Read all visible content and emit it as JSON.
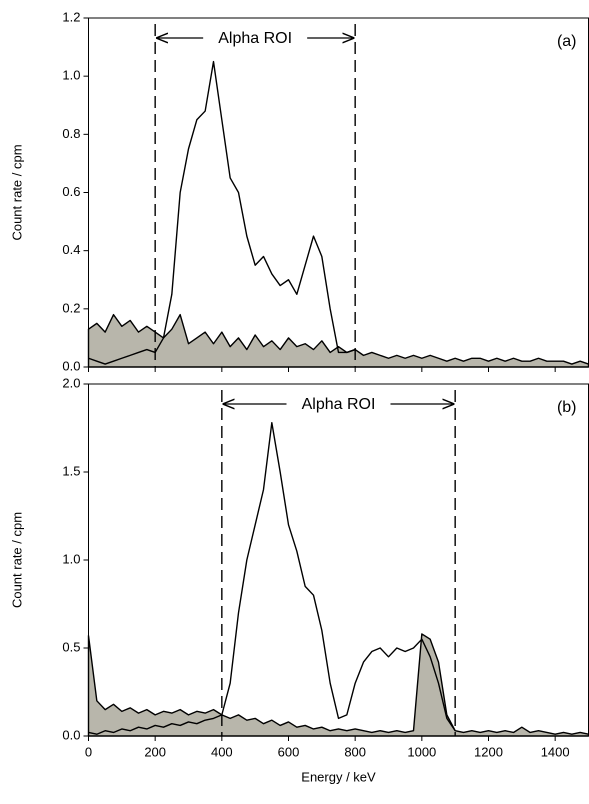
{
  "chart_data": [
    {
      "type": "line",
      "panel_label": "(a)",
      "ylabel": "Count rate / cpm",
      "annotation": "Alpha ROI",
      "roi": [
        200,
        800
      ],
      "xlim": [
        0,
        1500
      ],
      "xticks": [
        0,
        200,
        400,
        600,
        800,
        1000,
        1200,
        1400
      ],
      "ylim": [
        0,
        1.2
      ],
      "yticks": [
        {
          "value": 0,
          "label": "0.0"
        },
        0.2,
        0.4,
        0.6,
        0.8,
        {
          "value": 1,
          "label": "1.0"
        },
        1.2
      ],
      "x": [
        0,
        25,
        50,
        75,
        100,
        125,
        150,
        175,
        200,
        225,
        250,
        275,
        300,
        325,
        350,
        375,
        400,
        425,
        450,
        475,
        500,
        525,
        550,
        575,
        600,
        625,
        650,
        675,
        700,
        725,
        750,
        775,
        800,
        825,
        850,
        875,
        900,
        925,
        950,
        975,
        1000,
        1025,
        1050,
        1075,
        1100,
        1125,
        1150,
        1175,
        1200,
        1225,
        1250,
        1275,
        1300,
        1325,
        1350,
        1375,
        1400,
        1425,
        1450,
        1475,
        1500
      ],
      "series": [
        {
          "color": "#000000",
          "fill": "#b8b6ab",
          "values": [
            0.13,
            0.15,
            0.12,
            0.18,
            0.14,
            0.16,
            0.12,
            0.14,
            0.12,
            0.1,
            0.13,
            0.18,
            0.08,
            0.1,
            0.12,
            0.08,
            0.12,
            0.07,
            0.1,
            0.06,
            0.11,
            0.07,
            0.09,
            0.06,
            0.1,
            0.07,
            0.08,
            0.06,
            0.09,
            0.05,
            0.07,
            0.05,
            0.06,
            0.04,
            0.05,
            0.04,
            0.03,
            0.04,
            0.03,
            0.04,
            0.03,
            0.04,
            0.03,
            0.02,
            0.03,
            0.02,
            0.03,
            0.03,
            0.02,
            0.03,
            0.02,
            0.03,
            0.02,
            0.02,
            0.03,
            0.02,
            0.02,
            0.02,
            0.01,
            0.02,
            0.01
          ]
        },
        {
          "color": "#000000",
          "values": [
            0.03,
            0.02,
            0.01,
            0.02,
            0.03,
            0.04,
            0.05,
            0.06,
            0.05,
            0.1,
            0.25,
            0.6,
            0.75,
            0.85,
            0.88,
            1.05,
            0.85,
            0.65,
            0.6,
            0.45,
            0.35,
            0.38,
            0.32,
            0.28,
            0.3,
            0.25,
            0.35,
            0.45,
            0.38,
            0.2,
            0.05,
            0.05,
            0.06,
            null,
            null,
            null,
            null,
            null,
            null,
            null,
            null,
            null,
            null,
            null,
            null,
            null,
            null,
            null,
            null,
            null,
            null,
            null,
            null,
            null,
            null,
            null,
            null,
            null,
            null,
            null,
            null
          ]
        }
      ]
    },
    {
      "type": "line",
      "panel_label": "(b)",
      "ylabel": "Count rate / cpm",
      "xlabel": "Energy / keV",
      "annotation": "Alpha ROI",
      "roi": [
        400,
        1100
      ],
      "xlim": [
        0,
        1500
      ],
      "xticks": [
        0,
        200,
        400,
        600,
        800,
        1000,
        1200,
        1400
      ],
      "ylim": [
        0,
        2
      ],
      "yticks": [
        {
          "value": 0,
          "label": "0.0"
        },
        0.5,
        {
          "value": 1,
          "label": "1.0"
        },
        1.5,
        {
          "value": 2,
          "label": "2.0"
        }
      ],
      "x": [
        0,
        25,
        50,
        75,
        100,
        125,
        150,
        175,
        200,
        225,
        250,
        275,
        300,
        325,
        350,
        375,
        400,
        425,
        450,
        475,
        500,
        525,
        550,
        575,
        600,
        625,
        650,
        675,
        700,
        725,
        750,
        775,
        800,
        825,
        850,
        875,
        900,
        925,
        950,
        975,
        1000,
        1025,
        1050,
        1075,
        1100,
        1125,
        1150,
        1175,
        1200,
        1225,
        1250,
        1275,
        1300,
        1325,
        1350,
        1375,
        1400,
        1425,
        1450,
        1475,
        1500
      ],
      "series": [
        {
          "color": "#000000",
          "fill": "#b8b6ab",
          "values": [
            0.57,
            0.2,
            0.15,
            0.18,
            0.14,
            0.16,
            0.13,
            0.15,
            0.12,
            0.14,
            0.13,
            0.15,
            0.12,
            0.14,
            0.13,
            0.15,
            0.12,
            0.1,
            0.12,
            0.09,
            0.1,
            0.07,
            0.09,
            0.06,
            0.08,
            0.05,
            0.06,
            0.04,
            0.05,
            0.03,
            0.04,
            0.03,
            0.04,
            0.03,
            0.02,
            0.03,
            0.02,
            0.03,
            0.02,
            0.03,
            0.58,
            0.55,
            0.42,
            0.12,
            0.03,
            0.02,
            0.03,
            0.02,
            0.03,
            0.02,
            0.03,
            0.02,
            0.05,
            0.02,
            0.03,
            0.02,
            0.01,
            0.02,
            0.01,
            0.02,
            0.01
          ]
        },
        {
          "color": "#000000",
          "values": [
            0.02,
            0.01,
            0.03,
            0.02,
            0.04,
            0.03,
            0.05,
            0.04,
            0.06,
            0.05,
            0.07,
            0.06,
            0.08,
            0.07,
            0.09,
            0.1,
            0.12,
            0.3,
            0.7,
            1.0,
            1.2,
            1.4,
            1.78,
            1.5,
            1.2,
            1.05,
            0.85,
            0.8,
            0.6,
            0.3,
            0.1,
            0.12,
            0.3,
            0.42,
            0.48,
            0.5,
            0.45,
            0.5,
            0.48,
            0.5,
            0.55,
            0.45,
            0.3,
            0.1,
            0.03,
            null,
            null,
            null,
            null,
            null,
            null,
            null,
            null,
            null,
            null,
            null,
            null,
            null,
            null,
            null,
            null
          ]
        }
      ]
    }
  ]
}
